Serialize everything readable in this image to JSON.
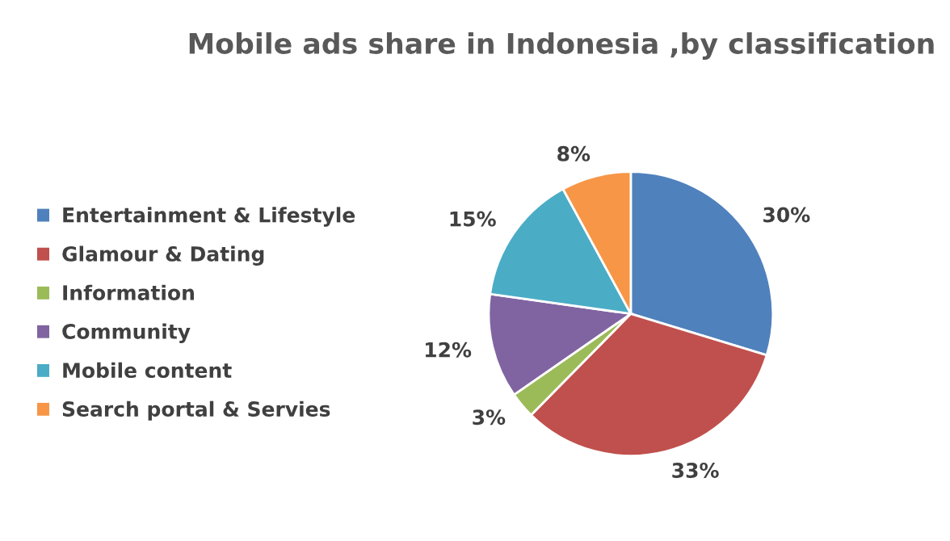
{
  "chart_data": {
    "type": "pie",
    "title": "Mobile ads share in Indonesia ,by classification",
    "categories": [
      "Entertainment & Lifestyle",
      "Glamour & Dating",
      "Information",
      "Community",
      "Mobile content",
      "Search portal & Servies"
    ],
    "values": [
      30,
      33,
      3,
      12,
      15,
      8
    ],
    "value_labels": [
      "30%",
      "33%",
      "3%",
      "12%",
      "15%",
      "8%"
    ],
    "colors": [
      "#4f81bd",
      "#c0504d",
      "#9bbb59",
      "#8064a2",
      "#4bacc6",
      "#f79646"
    ],
    "legend": "left"
  }
}
